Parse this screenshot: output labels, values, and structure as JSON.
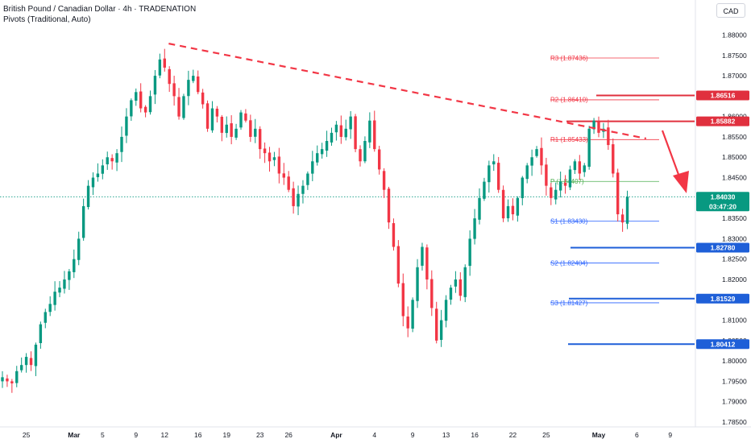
{
  "header": {
    "title": "British Pound / Canadian Dollar · 4h · TRADENATION",
    "indicator": "Pivots (Traditional, Auto)"
  },
  "currency_button": "CAD",
  "colors": {
    "up": "#089981",
    "down": "#f23645",
    "pivot_red": "#f23645",
    "pivot_blue": "#2962ff",
    "pivot_green": "#4caf50",
    "price_tag": "#089981",
    "support_tag": "#1e5fd8",
    "resistance_tag": "#e0303e"
  },
  "chart_data": {
    "type": "candlestick",
    "symbol": "GBPCAD",
    "timeframe": "4h",
    "y_ticks": [
      "1.88000",
      "1.87500",
      "1.87000",
      "1.86500",
      "1.86000",
      "1.85500",
      "1.85000",
      "1.84500",
      "1.84000",
      "1.83500",
      "1.83000",
      "1.82500",
      "1.82000",
      "1.81500",
      "1.81000",
      "1.80500",
      "1.80000",
      "1.79500",
      "1.79000",
      "1.78500"
    ],
    "y_tick_values": [
      1.88,
      1.875,
      1.87,
      1.865,
      1.86,
      1.855,
      1.85,
      1.845,
      1.84,
      1.835,
      1.83,
      1.825,
      1.82,
      1.815,
      1.81,
      1.805,
      1.8,
      1.795,
      1.79,
      1.785
    ],
    "x_ticks": [
      {
        "label": "25",
        "bar": 5
      },
      {
        "label": "Mar",
        "bar": 15
      },
      {
        "label": "5",
        "bar": 21
      },
      {
        "label": "9",
        "bar": 28
      },
      {
        "label": "12",
        "bar": 34
      },
      {
        "label": "16",
        "bar": 41
      },
      {
        "label": "19",
        "bar": 47
      },
      {
        "label": "23",
        "bar": 54
      },
      {
        "label": "26",
        "bar": 60
      },
      {
        "label": "Apr",
        "bar": 70
      },
      {
        "label": "4",
        "bar": 78
      },
      {
        "label": "9",
        "bar": 86
      },
      {
        "label": "13",
        "bar": 93
      },
      {
        "label": "16",
        "bar": 99
      },
      {
        "label": "22",
        "bar": 107
      },
      {
        "label": "25",
        "bar": 114
      },
      {
        "label": "May",
        "bar": 125
      },
      {
        "label": "6",
        "bar": 133
      },
      {
        "label": "9",
        "bar": 140
      }
    ],
    "pivots": [
      {
        "name": "R3",
        "label": "R3 (1.87436)",
        "value": 1.87436,
        "color": "red"
      },
      {
        "name": "R2",
        "label": "R2 (1.86410)",
        "value": 1.8641,
        "color": "red"
      },
      {
        "name": "R1",
        "label": "R1 (1.85433)",
        "value": 1.85433,
        "color": "red"
      },
      {
        "name": "P",
        "label": "P (1.84407)",
        "value": 1.84407,
        "color": "green"
      },
      {
        "name": "S1",
        "label": "S1 (1.83430)",
        "value": 1.8343,
        "color": "blue"
      },
      {
        "name": "S2",
        "label": "S2 (1.82404)",
        "value": 1.82404,
        "color": "blue"
      },
      {
        "name": "S3",
        "label": "S3 (1.81427)",
        "value": 1.81427,
        "color": "blue"
      }
    ],
    "levels": [
      {
        "label": "1.86516",
        "value": 1.86516,
        "kind": "resistance"
      },
      {
        "label": "1.85882",
        "value": 1.85882,
        "kind": "resistance"
      },
      {
        "label": "1.82780",
        "value": 1.8278,
        "kind": "support"
      },
      {
        "label": "1.81529",
        "value": 1.81529,
        "kind": "support"
      },
      {
        "label": "1.80412",
        "value": 1.80412,
        "kind": "support"
      }
    ],
    "current_price": {
      "value": 1.8403,
      "label": "1.84030",
      "countdown": "03:47:20"
    },
    "trendline": {
      "from": {
        "bar": 33,
        "price": 1.8779
      },
      "to": {
        "bar": 127,
        "price": 1.8546
      }
    },
    "closes": [
      1.796,
      1.795,
      1.7945,
      1.7975,
      1.799,
      1.801,
      1.799,
      1.804,
      1.809,
      1.812,
      1.814,
      1.817,
      1.818,
      1.82,
      1.822,
      1.825,
      1.83,
      1.838,
      1.843,
      1.845,
      1.846,
      1.848,
      1.85,
      1.849,
      1.851,
      1.855,
      1.86,
      1.864,
      1.866,
      1.862,
      1.861,
      1.865,
      1.87,
      1.874,
      1.872,
      1.868,
      1.865,
      1.86,
      1.865,
      1.869,
      1.87,
      1.866,
      1.863,
      1.857,
      1.862,
      1.86,
      1.856,
      1.858,
      1.855,
      1.857,
      1.861,
      1.859,
      1.855,
      1.857,
      1.852,
      1.851,
      1.849,
      1.85,
      1.846,
      1.845,
      1.842,
      1.838,
      1.841,
      1.843,
      1.846,
      1.849,
      1.851,
      1.852,
      1.854,
      1.856,
      1.858,
      1.855,
      1.857,
      1.86,
      1.852,
      1.849,
      1.854,
      1.859,
      1.852,
      1.847,
      1.842,
      1.834,
      1.828,
      1.819,
      1.811,
      1.808,
      1.815,
      1.823,
      1.828,
      1.82,
      1.813,
      1.805,
      1.81,
      1.815,
      1.818,
      1.82,
      1.816,
      1.823,
      1.83,
      1.835,
      1.84,
      1.844,
      1.848,
      1.849,
      1.842,
      1.835,
      1.838,
      1.836,
      1.84,
      1.845,
      1.848,
      1.85,
      1.852,
      1.848,
      1.843,
      1.84,
      1.842,
      1.844,
      1.843,
      1.847,
      1.849,
      1.846,
      1.848,
      1.857,
      1.859,
      1.856,
      1.857,
      1.853,
      1.846,
      1.836,
      1.834,
      1.8403
    ]
  }
}
